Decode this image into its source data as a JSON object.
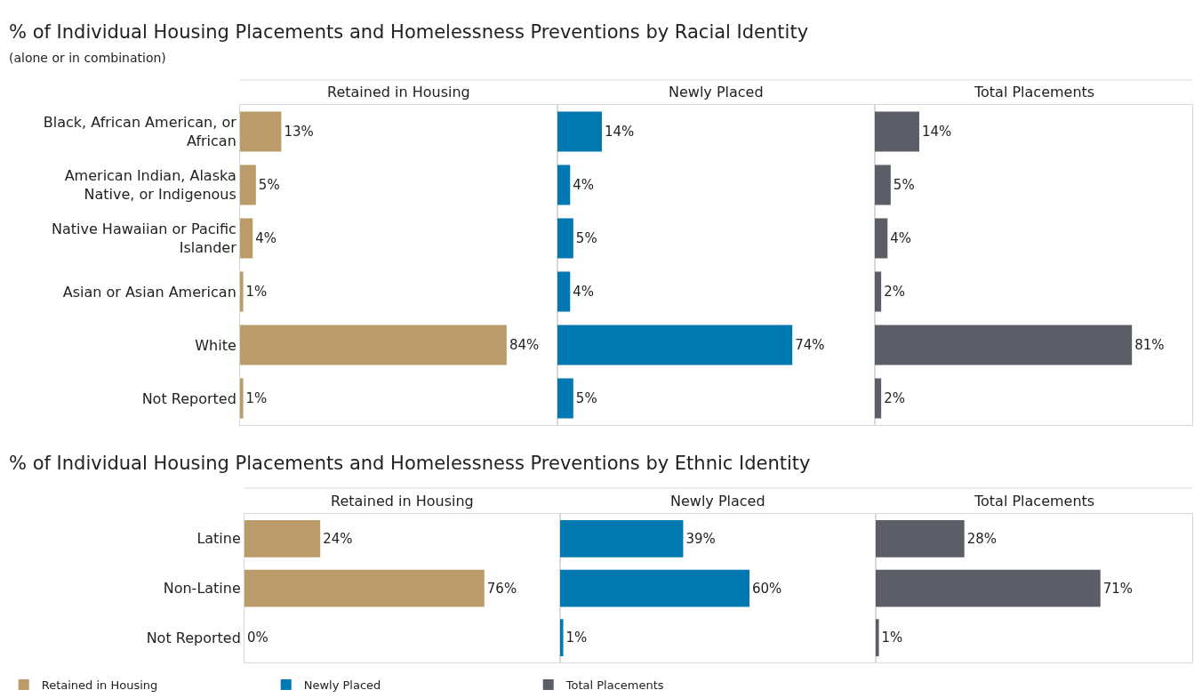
{
  "chart_data": [
    {
      "type": "bar",
      "orientation": "horizontal",
      "title": "% of Individual Housing Placements and Homelessness Preventions by Racial Identity",
      "subtitle": "(alone or in combination)",
      "xlabel": "Retained in Housing",
      "categories": [
        "Black, African American, or African",
        "American Indian, Alaska Native, or Indigenous",
        "Native Hawaiian or Pacific Islander",
        "Asian or Asian American",
        "White",
        "Not Reported"
      ],
      "series": [
        {
          "color": "#bc9b6a",
          "values": [
            13,
            5,
            4,
            1,
            84,
            1
          ],
          "value_labels": [
            "13%",
            "5%",
            "4%",
            "1%",
            "84%",
            "1%"
          ]
        }
      ],
      "xlim": [
        0,
        100
      ],
      "tick_labels": "y"
    },
    {
      "type": "bar",
      "orientation": "horizontal",
      "xlabel": "Newly Placed",
      "categories": [
        "Black, African American, or African",
        "American Indian, Alaska Native, or Indigenous",
        "Native Hawaiian or Pacific Islander",
        "Asian or Asian American",
        "White",
        "Not Reported"
      ],
      "series": [
        {
          "color": "#0079b1",
          "values": [
            14,
            4,
            5,
            4,
            74,
            5
          ],
          "value_labels": [
            "14%",
            "4%",
            "5%",
            "4%",
            "74%",
            "5%"
          ]
        }
      ],
      "xlim": [
        0,
        100
      ],
      "tick_labels": false
    },
    {
      "type": "bar",
      "orientation": "horizontal",
      "xlabel": "Total Placements",
      "categories": [
        "Black, African American, or African",
        "American Indian, Alaska Native, or Indigenous",
        "Native Hawaiian or Pacific Islander",
        "Asian or Asian American",
        "White",
        "Not Reported"
      ],
      "series": [
        {
          "color": "#5b5e66",
          "values": [
            14,
            5,
            4,
            2,
            81,
            2
          ],
          "value_labels": [
            "14%",
            "5%",
            "4%",
            "2%",
            "81%",
            "2%"
          ]
        }
      ],
      "xlim": [
        0,
        100
      ],
      "tick_labels": false
    },
    {
      "type": "bar",
      "orientation": "horizontal",
      "title": "% of Individual Housing Placements and Homelessness Preventions by Ethnic Identity",
      "xlabel": "Retained in Housing",
      "categories": [
        "Latine",
        "Non-Latine",
        "Not Reported"
      ],
      "series": [
        {
          "name": "Retained in Housing",
          "color": "#bc9b6a",
          "values": [
            24,
            76,
            0
          ],
          "value_labels": [
            "24%",
            "76%",
            "0%"
          ]
        }
      ],
      "xlim": [
        0,
        100
      ],
      "tick_labels": "y",
      "legend": "bottom"
    },
    {
      "type": "bar",
      "orientation": "horizontal",
      "xlabel": "Newly Placed",
      "categories": [
        "Latine",
        "Non-Latine",
        "Not Reported"
      ],
      "series": [
        {
          "name": "Newly Placed",
          "color": "#0079b1",
          "values": [
            39,
            60,
            1
          ],
          "value_labels": [
            "39%",
            "60%",
            "1%"
          ]
        }
      ],
      "xlim": [
        0,
        100
      ],
      "tick_labels": false,
      "legend": "bottom"
    },
    {
      "type": "bar",
      "orientation": "horizontal",
      "xlabel": "Total Placements",
      "categories": [
        "Latine",
        "Non-Latine",
        "Not Reported"
      ],
      "series": [
        {
          "name": "Total Placements",
          "color": "#5b5e66",
          "values": [
            28,
            71,
            1
          ],
          "value_labels": [
            "28%",
            "71%",
            "1%"
          ]
        }
      ],
      "xlim": [
        0,
        100
      ],
      "tick_labels": false,
      "legend": "bottom"
    }
  ]
}
